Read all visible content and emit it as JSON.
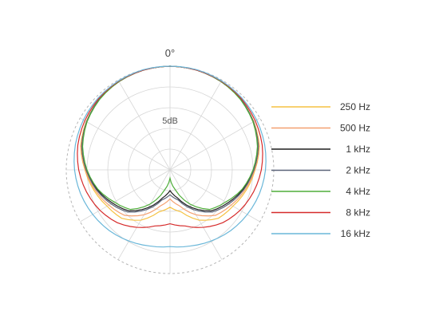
{
  "chart_data": {
    "type": "polar",
    "angle_label": "0°",
    "radial_tick_label": "5dB",
    "grid": true,
    "legend_position": "right",
    "rlim_db": [
      -25,
      0
    ],
    "angles_deg": [
      0,
      15,
      30,
      45,
      60,
      75,
      90,
      105,
      120,
      135,
      150,
      165,
      180
    ],
    "series": [
      {
        "name": "250 Hz",
        "color": "#f5c242",
        "values_db": [
          0,
          -0.1,
          -0.4,
          -0.9,
          -1.7,
          -2.7,
          -4.5,
          -6.0,
          -7.5,
          -8.5,
          -11.0,
          -14.5,
          -16.0
        ]
      },
      {
        "name": "500 Hz",
        "color": "#f4a070",
        "values_db": [
          0,
          -0.1,
          -0.4,
          -0.9,
          -1.8,
          -2.8,
          -4.6,
          -6.3,
          -8.0,
          -9.5,
          -12.5,
          -16.0,
          -18.0
        ]
      },
      {
        "name": "1 kHz",
        "color": "#1e1e1e",
        "values_db": [
          0,
          -0.1,
          -0.4,
          -0.9,
          -1.8,
          -3.0,
          -4.8,
          -6.8,
          -9.0,
          -11.0,
          -14.5,
          -18.0,
          -20.0
        ]
      },
      {
        "name": "2 kHz",
        "color": "#5a6378",
        "values_db": [
          0,
          -0.1,
          -0.4,
          -0.9,
          -1.8,
          -3.0,
          -4.8,
          -6.6,
          -8.6,
          -10.6,
          -14.0,
          -17.5,
          -19.0
        ]
      },
      {
        "name": "4 kHz",
        "color": "#4fae3a",
        "values_db": [
          0,
          -0.1,
          -0.4,
          -1.0,
          -1.9,
          -3.2,
          -5.0,
          -7.0,
          -9.5,
          -11.5,
          -15.5,
          -20.0,
          -23.0
        ]
      },
      {
        "name": "8 kHz",
        "color": "#d62b2b",
        "values_db": [
          0,
          -0.1,
          -0.3,
          -0.7,
          -1.3,
          -2.0,
          -3.0,
          -4.2,
          -5.5,
          -7.0,
          -9.0,
          -11.0,
          -12.0
        ]
      },
      {
        "name": "16 kHz",
        "color": "#6ab7d9",
        "values_db": [
          0,
          0,
          -0.2,
          -0.5,
          -0.9,
          -1.4,
          -2.0,
          -2.7,
          -3.5,
          -4.3,
          -5.2,
          -6.0,
          -6.5
        ]
      }
    ]
  }
}
